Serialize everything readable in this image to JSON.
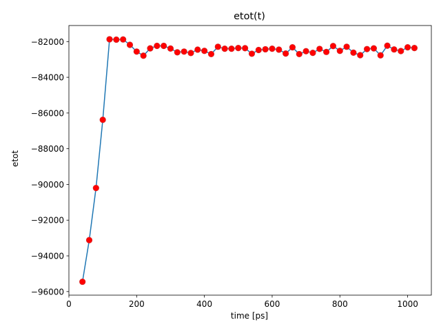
{
  "chart_data": {
    "type": "line",
    "title": "etot(t)",
    "xlabel": "time [ps]",
    "ylabel": "etot",
    "xlim": [
      0,
      1070
    ],
    "ylim": [
      -96200,
      -81100
    ],
    "xticks": [
      0,
      200,
      400,
      600,
      800,
      1000
    ],
    "yticks": [
      -96000,
      -94000,
      -92000,
      -90000,
      -88000,
      -86000,
      -84000,
      -82000
    ],
    "ytick_labels": [
      "−96000",
      "−94000",
      "−92000",
      "−90000",
      "−88000",
      "−86000",
      "−84000",
      "−82000"
    ],
    "grid": false,
    "line_color": "#1f77b4",
    "marker_color": "#ff0000",
    "marker_edge_color": "#d62728",
    "series": [
      {
        "x": [
          40,
          60,
          80,
          100,
          120,
          140,
          160,
          180,
          200,
          220,
          240,
          260,
          280,
          300,
          320,
          340,
          360,
          380,
          400,
          420,
          440,
          460,
          480,
          500,
          520,
          540,
          560,
          580,
          600,
          620,
          640,
          660,
          680,
          700,
          720,
          740,
          760,
          780,
          800,
          820,
          840,
          860,
          880,
          900,
          920,
          940,
          960,
          980,
          1000,
          1020
        ],
        "y": [
          -95450,
          -93120,
          -90200,
          -86380,
          -81870,
          -81890,
          -81880,
          -82180,
          -82560,
          -82790,
          -82380,
          -82240,
          -82240,
          -82390,
          -82600,
          -82560,
          -82640,
          -82450,
          -82520,
          -82700,
          -82290,
          -82400,
          -82400,
          -82360,
          -82370,
          -82680,
          -82470,
          -82430,
          -82400,
          -82450,
          -82670,
          -82320,
          -82700,
          -82540,
          -82630,
          -82410,
          -82580,
          -82250,
          -82520,
          -82290,
          -82620,
          -82760,
          -82420,
          -82380,
          -82770,
          -82230,
          -82440,
          -82530,
          -82320,
          -82360
        ]
      }
    ]
  }
}
